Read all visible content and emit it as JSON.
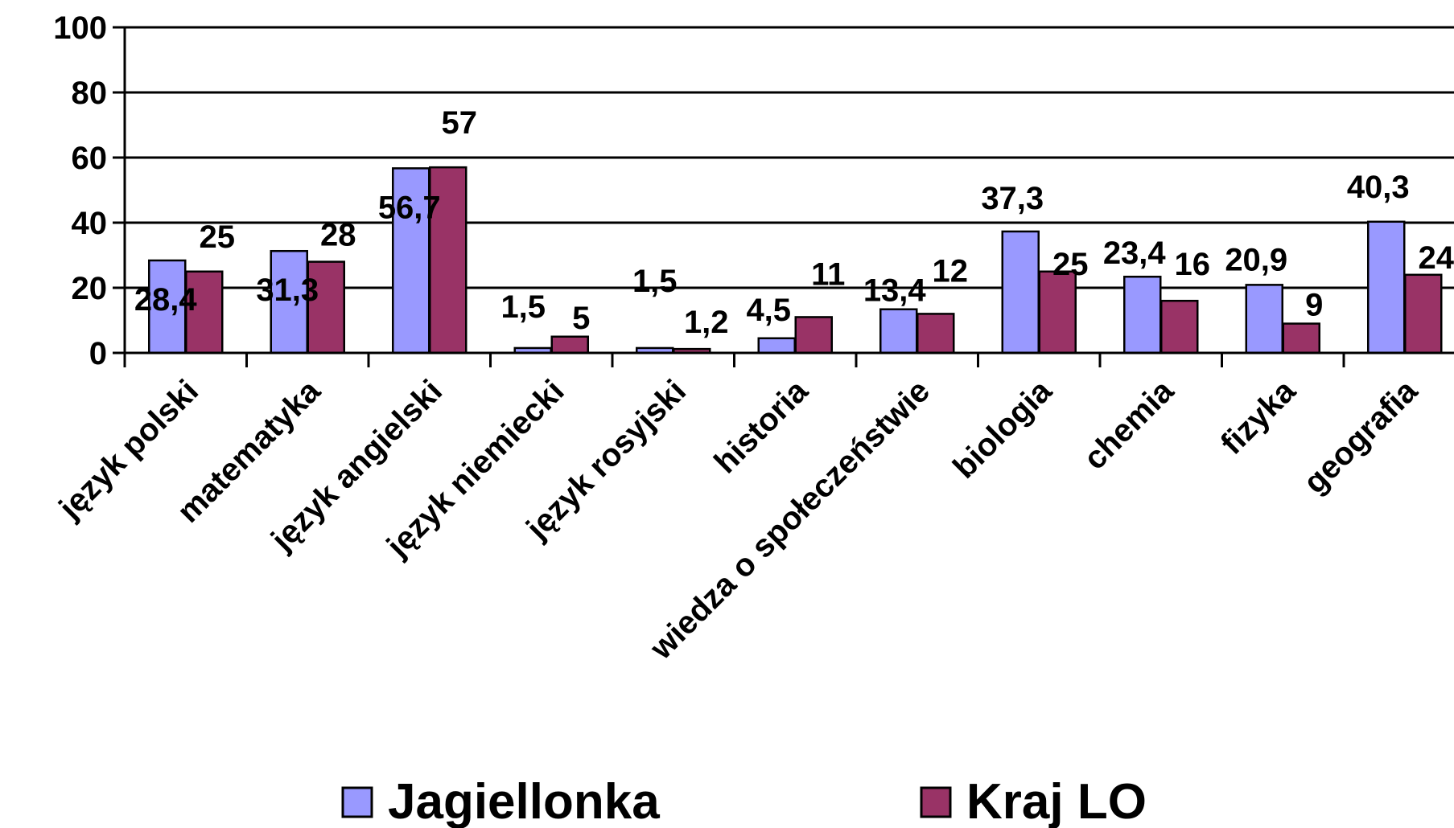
{
  "chart_data": {
    "type": "bar",
    "categories": [
      "język polski",
      "matematyka",
      "język angielski",
      "język niemiecki",
      "język rosyjski",
      "historia",
      "wiedza o społeczeństwie",
      "biologia",
      "chemia",
      "fizyka",
      "geografia"
    ],
    "series": [
      {
        "name": "Jagiellonka",
        "color": "#9999ff",
        "values": [
          28.4,
          31.3,
          56.7,
          1.5,
          1.5,
          4.5,
          13.4,
          37.3,
          23.4,
          20.9,
          40.3
        ],
        "labels": [
          "28,4",
          "31,3",
          "56,7",
          "1,5",
          "1,5",
          "4,5",
          "13,4",
          "37,3",
          "23,4",
          "20,9",
          "40,3"
        ]
      },
      {
        "name": "Kraj LO",
        "color": "#993366",
        "values": [
          25,
          28,
          57,
          5,
          1.2,
          11,
          12,
          25,
          16,
          9,
          24
        ],
        "labels": [
          "25",
          "28",
          "57",
          "5",
          "1,2",
          "11",
          "12",
          "25",
          "16",
          "9",
          "24"
        ]
      }
    ],
    "yticks": [
      "0",
      "20",
      "40",
      "60",
      "80",
      "100"
    ],
    "ylim": [
      0,
      100
    ],
    "grid": true,
    "legend": "bottom",
    "title": "",
    "xlabel": "",
    "ylabel": ""
  }
}
